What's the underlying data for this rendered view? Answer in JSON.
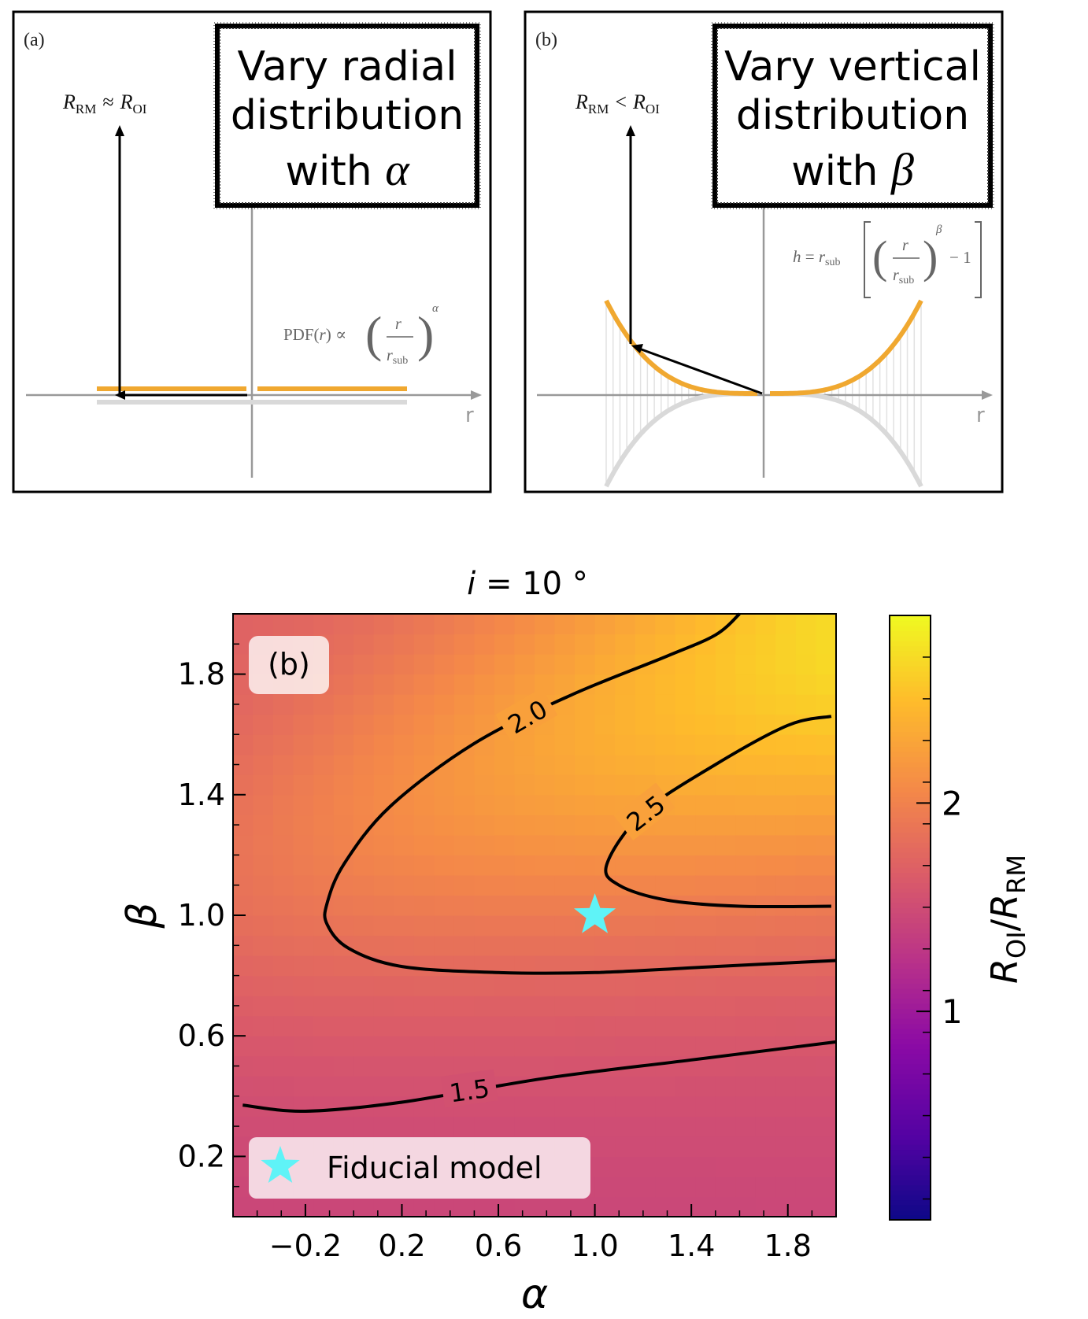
{
  "panel_a": {
    "tag": "(a)",
    "box_line1": "Vary radial",
    "box_line2": "distribution",
    "box_line3_prefix": "with ",
    "box_symbol": "α",
    "arrow_label": "R_RM ≈ R_OI",
    "arrow_label_parts": {
      "r": "R",
      "rm": "RM",
      "rel": "≈",
      "oi": "OI"
    },
    "formula": "PDF(r) ∝ (r / r_sub)^α",
    "formula_parts": {
      "lhs": "PDF(",
      "var": "r",
      "rhs": ") ∝",
      "num": "r",
      "den_main": "r",
      "den_sub": "sub",
      "exp": "α"
    },
    "axis_label": "r"
  },
  "panel_b": {
    "tag": "(b)",
    "box_line1": "Vary vertical",
    "box_line2": "distribution",
    "box_line3_prefix": "with ",
    "box_symbol": "β",
    "arrow_label": "R_RM < R_OI",
    "arrow_label_parts": {
      "r": "R",
      "rm": "RM",
      "rel": "<",
      "oi": "OI"
    },
    "formula": "h = r_sub [ (r / r_sub)^β − 1 ]",
    "formula_parts": {
      "lhs": "h = r",
      "lhs_sub": "sub",
      "num": "r",
      "den_main": "r",
      "den_sub": "sub",
      "exp": "β",
      "minus_one": "− 1"
    },
    "axis_label": "r"
  },
  "colors": {
    "disk_orange": "#f0a830",
    "shadow_gray": "#d9d9d9",
    "axis_gray": "#999999",
    "star_cyan": "#5ff3f7",
    "contour": "#000000"
  },
  "chart_data": {
    "type": "heatmap",
    "title": "i = 10 °",
    "title_parts": {
      "var": "i",
      "rest": " = 10 °"
    },
    "panel_label": "(b)",
    "xlabel": "α",
    "ylabel": "β",
    "xlim": [
      -0.5,
      2.0
    ],
    "ylim": [
      0.0,
      2.0
    ],
    "xticks": [
      -0.2,
      0.2,
      0.6,
      1.0,
      1.4,
      1.8
    ],
    "xtick_labels": [
      "−0.2",
      "0.2",
      "0.6",
      "1.0",
      "1.4",
      "1.8"
    ],
    "yticks": [
      0.2,
      0.6,
      1.0,
      1.4,
      1.8
    ],
    "ytick_labels": [
      "0.2",
      "0.6",
      "1.0",
      "1.4",
      "1.8"
    ],
    "colormap": "plasma",
    "colorbar": {
      "label": "R_OI / R_RM",
      "label_parts": {
        "r1": "R",
        "s1": "OI",
        "slash": "/",
        "r2": "R",
        "s2": "RM"
      },
      "vmin": 0.0,
      "vmax": 2.9,
      "ticks": [
        1,
        2
      ],
      "tick_labels": [
        "1",
        "2"
      ]
    },
    "contours": [
      {
        "level": 1.5,
        "label": "1.5",
        "points": [
          [
            -0.46,
            0.37
          ],
          [
            -0.2,
            0.35
          ],
          [
            0.2,
            0.38
          ],
          [
            0.8,
            0.46
          ],
          [
            1.4,
            0.52
          ],
          [
            2.0,
            0.58
          ]
        ]
      },
      {
        "level": 2.0,
        "label": "2.0",
        "points": [
          [
            2.0,
            0.85
          ],
          [
            1.5,
            0.83
          ],
          [
            1.0,
            0.81
          ],
          [
            0.6,
            0.81
          ],
          [
            0.2,
            0.83
          ],
          [
            -0.02,
            0.89
          ],
          [
            -0.11,
            0.97
          ],
          [
            -0.11,
            1.04
          ],
          [
            -0.04,
            1.17
          ],
          [
            0.15,
            1.36
          ],
          [
            0.5,
            1.57
          ],
          [
            0.9,
            1.73
          ],
          [
            1.3,
            1.86
          ],
          [
            1.5,
            1.93
          ],
          [
            1.6,
            2.0
          ]
        ]
      },
      {
        "level": 2.5,
        "label": "2.5",
        "points": [
          [
            1.98,
            1.03
          ],
          [
            1.6,
            1.03
          ],
          [
            1.3,
            1.05
          ],
          [
            1.1,
            1.1
          ],
          [
            1.05,
            1.17
          ],
          [
            1.2,
            1.34
          ],
          [
            1.5,
            1.5
          ],
          [
            1.8,
            1.63
          ],
          [
            1.98,
            1.66
          ]
        ]
      }
    ],
    "markers": [
      {
        "name": "Fiducial model",
        "x": 1.0,
        "y": 1.0,
        "symbol": "star"
      }
    ],
    "legend": {
      "entries": [
        "Fiducial model"
      ],
      "placement": "lower-left"
    }
  }
}
